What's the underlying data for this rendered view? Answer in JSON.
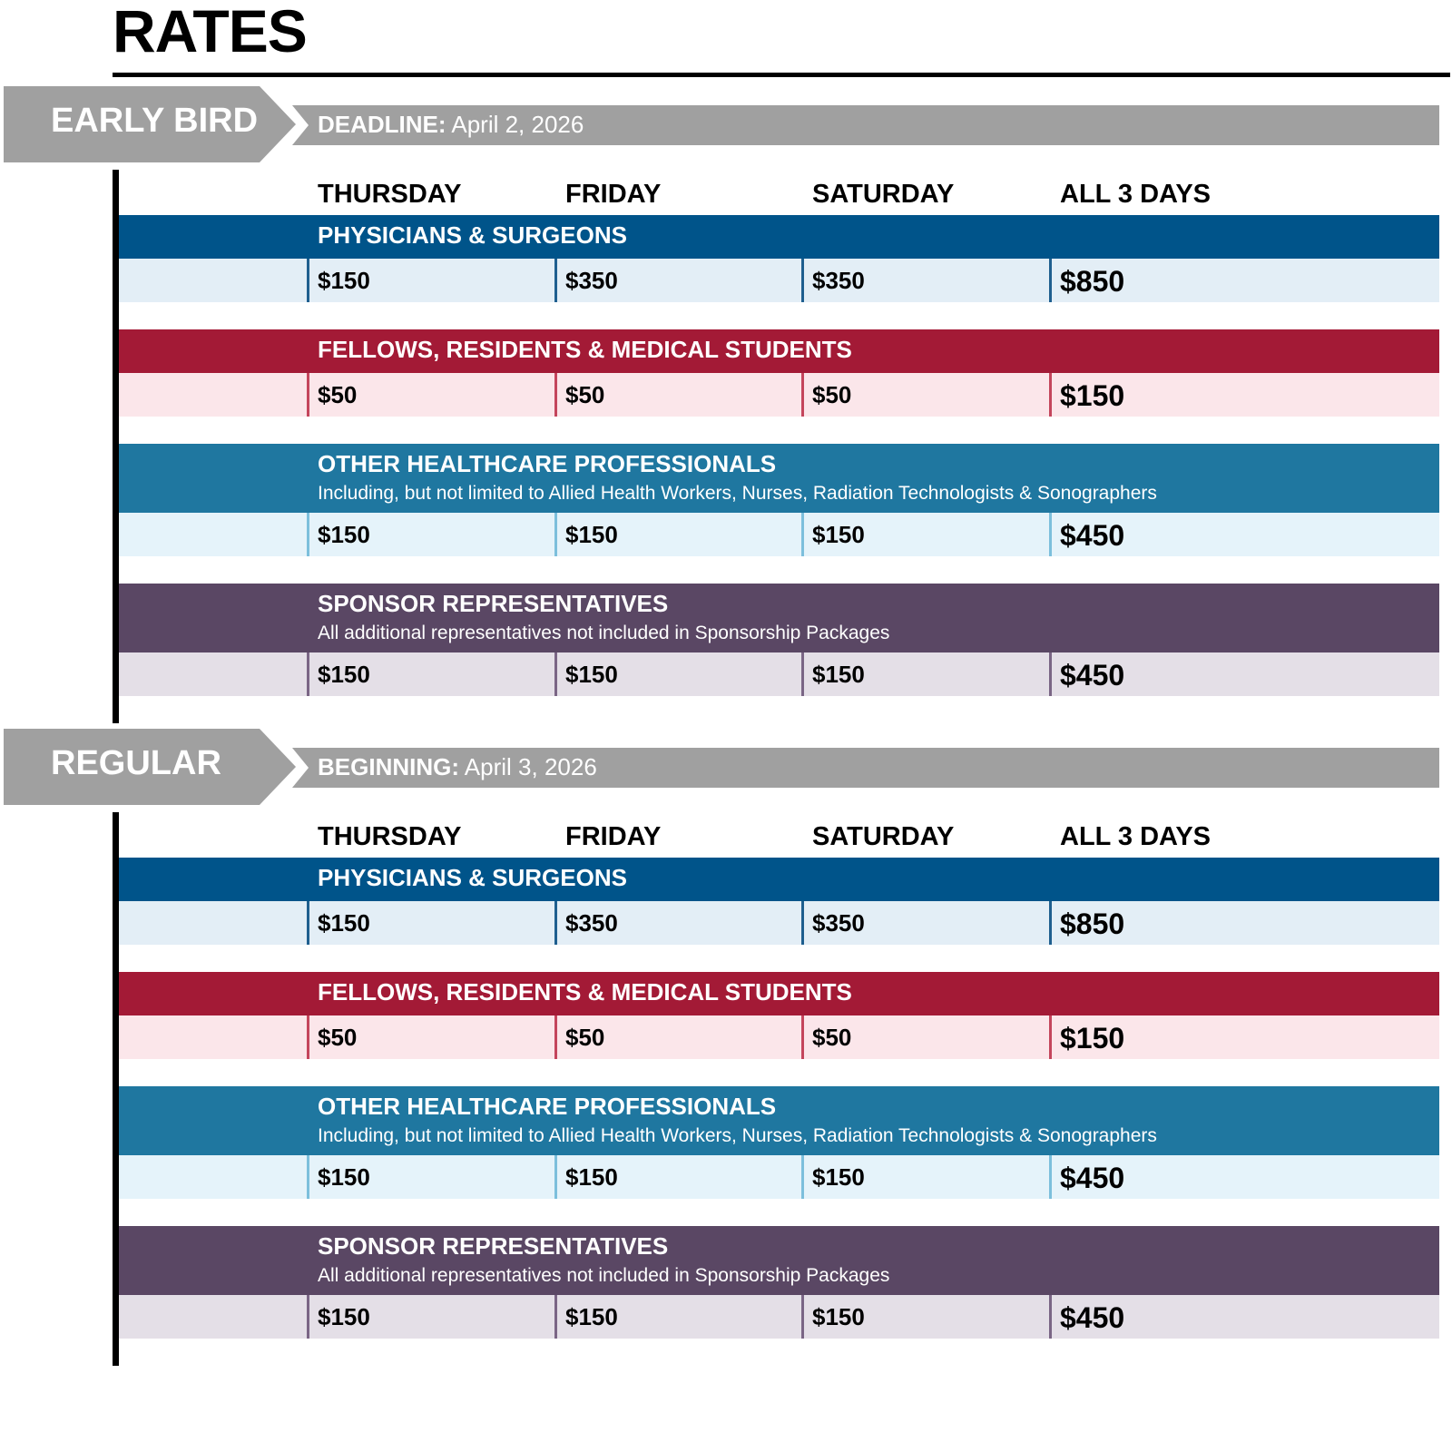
{
  "title": "RATES",
  "sections": [
    {
      "label": "EARLY BIRD",
      "date_label": "DEADLINE:",
      "date": "April 2, 2026",
      "columns": [
        "THURSDAY",
        "FRIDAY",
        "SATURDAY",
        "ALL 3 DAYS"
      ],
      "groups": [
        {
          "name": "PHYSICIANS & SURGEONS",
          "prices": [
            "$150",
            "$350",
            "$350",
            "$850"
          ]
        },
        {
          "name": "FELLOWS, RESIDENTS & MEDICAL STUDENTS",
          "prices": [
            "$50",
            "$50",
            "$50",
            "$150"
          ]
        },
        {
          "name": "OTHER HEALTHCARE PROFESSIONALS",
          "note": "Including, but not limited to Allied Health Workers, Nurses, Radiation Technologists & Sonographers",
          "prices": [
            "$150",
            "$150",
            "$150",
            "$450"
          ]
        },
        {
          "name": "SPONSOR REPRESENTATIVES",
          "note": "All additional representatives not included in Sponsorship Packages",
          "prices": [
            "$150",
            "$150",
            "$150",
            "$450"
          ]
        }
      ]
    },
    {
      "label": "REGULAR",
      "date_label": "BEGINNING:",
      "date": "April 3, 2026",
      "columns": [
        "THURSDAY",
        "FRIDAY",
        "SATURDAY",
        "ALL 3 DAYS"
      ],
      "groups": [
        {
          "name": "PHYSICIANS & SURGEONS",
          "prices": [
            "$150",
            "$350",
            "$350",
            "$850"
          ]
        },
        {
          "name": "FELLOWS, RESIDENTS & MEDICAL STUDENTS",
          "prices": [
            "$50",
            "$50",
            "$50",
            "$150"
          ]
        },
        {
          "name": "OTHER HEALTHCARE PROFESSIONALS",
          "note": "Including, but not limited to Allied Health Workers, Nurses, Radiation Technologists & Sonographers",
          "prices": [
            "$150",
            "$150",
            "$150",
            "$450"
          ]
        },
        {
          "name": "SPONSOR REPRESENTATIVES",
          "note": "All additional representatives not included in Sponsorship Packages",
          "prices": [
            "$150",
            "$150",
            "$150",
            "$450"
          ]
        }
      ]
    }
  ]
}
